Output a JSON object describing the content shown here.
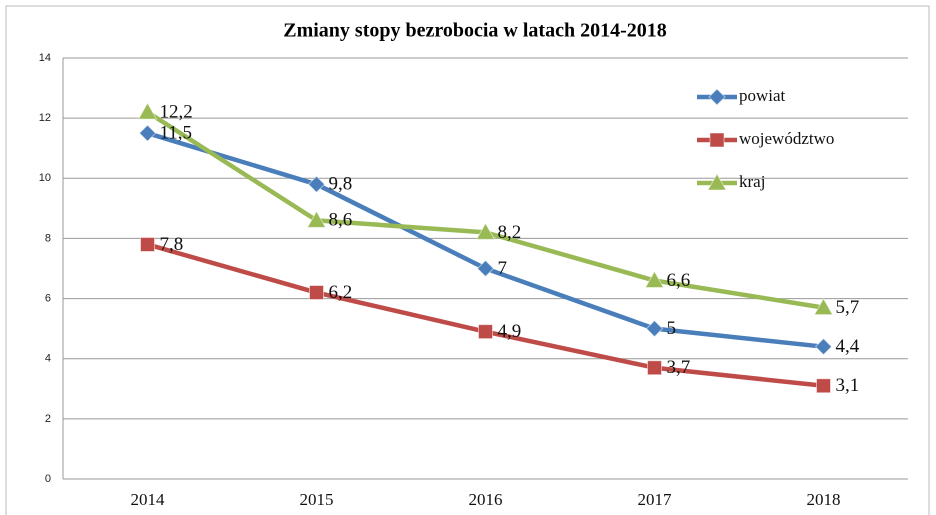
{
  "chart_data": {
    "type": "line",
    "title": "Zmiany  stopy bezrobocia  w latach 2014-2018",
    "categories": [
      "2014",
      "2015",
      "2016",
      "2017",
      "2018"
    ],
    "series": [
      {
        "name": "powiat",
        "color": "#4a7ebb",
        "marker": "diamond",
        "values": [
          11.5,
          9.8,
          7,
          5,
          4.4
        ],
        "value_labels": [
          "11,5",
          "9,8",
          "7",
          "5",
          "4,4"
        ]
      },
      {
        "name": "województwo",
        "color": "#be4b48",
        "marker": "square",
        "values": [
          7.8,
          6.2,
          4.9,
          3.7,
          3.1
        ],
        "value_labels": [
          "7,8",
          "6,2",
          "4,9",
          "3,7",
          "3,1"
        ]
      },
      {
        "name": "kraj",
        "color": "#98b954",
        "marker": "triangle",
        "values": [
          12.2,
          8.6,
          8.2,
          6.6,
          5.7
        ],
        "value_labels": [
          "12,2",
          "8,6",
          "8,2",
          "6,6",
          "5,7"
        ]
      }
    ],
    "ylim": [
      0,
      14
    ],
    "yticks": [
      0,
      2,
      4,
      6,
      8,
      10,
      12,
      14
    ],
    "grid": true,
    "legend": "top-right"
  }
}
